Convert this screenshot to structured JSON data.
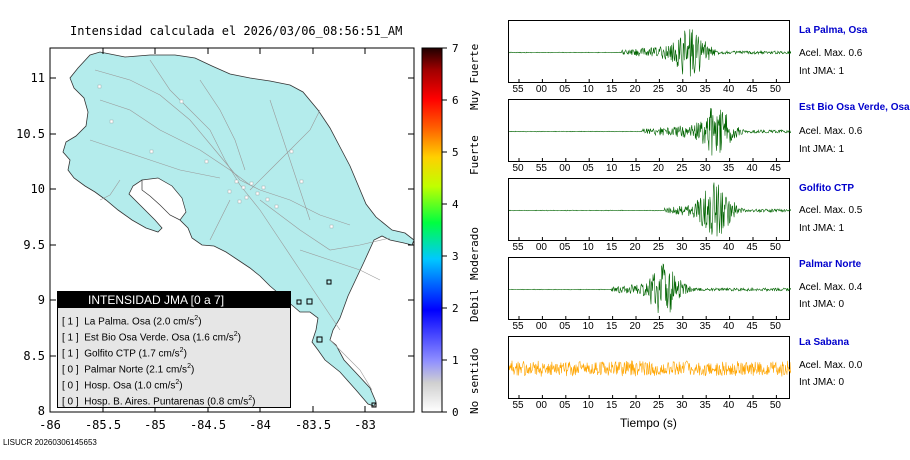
{
  "map": {
    "title": "Intensidad calculada el 2026/03/06_08:56:51_AM",
    "y_ticks": [
      "11",
      "10.5",
      "10",
      "9.5",
      "9",
      "8.5",
      "8"
    ],
    "x_ticks": [
      "-86",
      "-85.5",
      "-85",
      "-84.5",
      "-84",
      "-83.5",
      "-83"
    ],
    "land_color": "#b4ecec",
    "sea_color": "#ffffff"
  },
  "colorbar": {
    "ticks": [
      "7",
      "6",
      "5",
      "4",
      "3",
      "2",
      "1",
      "0"
    ],
    "categories": [
      "Muy Fuerte",
      "Fuerte",
      "Moderado",
      "Debil",
      "No sentido"
    ]
  },
  "legend": {
    "title": "INTENSIDAD JMA [0 a 7]",
    "items": [
      {
        "int": "[ 1 ]",
        "text": "La Palma. Osa (2.0 cm/s",
        "sup": "2",
        "close": ")"
      },
      {
        "int": "[ 1 ]",
        "text": "Est Bio Osa Verde. Osa (1.6 cm/s",
        "sup": "2",
        "close": ")"
      },
      {
        "int": "[ 1 ]",
        "text": "Golfito CTP (1.7 cm/s",
        "sup": "2",
        "close": ")"
      },
      {
        "int": "[ 0 ]",
        "text": "Palmar Norte (2.1 cm/s",
        "sup": "2",
        "close": ")"
      },
      {
        "int": "[ 0 ]",
        "text": "Hosp. Osa (1.0 cm/s",
        "sup": "2",
        "close": ")"
      },
      {
        "int": "[ 0 ]",
        "text": "Hosp. B. Aires. Puntarenas (0.8 cm/s",
        "sup": "2",
        "close": ")"
      }
    ]
  },
  "stations": [
    {
      "name": "La Palma, Osa",
      "acc": "Acel. Max. 0.6",
      "int": "Int JMA: 1",
      "color": "#006400",
      "ticks": [
        "55",
        "00",
        "05",
        "10",
        "15",
        "20",
        "25",
        "30",
        "35",
        "40",
        "45",
        "50"
      ],
      "onset": 0.4,
      "peak": 0.64,
      "amp": 0.9
    },
    {
      "name": "Est Bio Osa Verde, Osa",
      "acc": "Acel. Max. 0.6",
      "int": "Int JMA: 1",
      "color": "#006400",
      "ticks": [
        "50",
        "55",
        "00",
        "05",
        "10",
        "15",
        "20",
        "25",
        "30",
        "35",
        "40",
        "45"
      ],
      "onset": 0.47,
      "peak": 0.73,
      "amp": 0.9
    },
    {
      "name": "Golfito CTP",
      "acc": "Acel. Max. 0.5",
      "int": "Int JMA: 1",
      "color": "#006400",
      "ticks": [
        "55",
        "00",
        "05",
        "10",
        "15",
        "20",
        "25",
        "30",
        "35",
        "40",
        "45",
        "50"
      ],
      "onset": 0.55,
      "peak": 0.73,
      "amp": 0.95
    },
    {
      "name": "Palmar Norte",
      "acc": "Acel. Max. 0.4",
      "int": "Int JMA: 0",
      "color": "#006400",
      "ticks": [
        "55",
        "00",
        "05",
        "10",
        "15",
        "20",
        "25",
        "30",
        "35",
        "40",
        "45",
        "50"
      ],
      "onset": 0.36,
      "peak": 0.55,
      "amp": 0.9
    },
    {
      "name": "La Sabana",
      "acc": "Acel. Max. 0.0",
      "int": "Int JMA: 0",
      "color": "#ffa500",
      "ticks": [
        "55",
        "00",
        "05",
        "10",
        "15",
        "20",
        "25",
        "30",
        "35",
        "40",
        "45",
        "50"
      ],
      "onset": 0.0,
      "peak": 0.5,
      "amp": 0.0
    }
  ],
  "xaxis_label": "Tiempo (s)",
  "footer": "LISUCR 20260306145653"
}
